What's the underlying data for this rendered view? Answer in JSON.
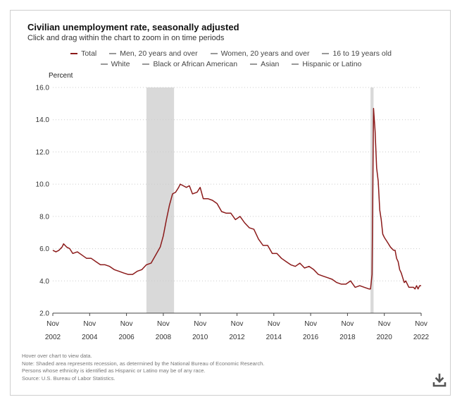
{
  "chart_data": {
    "type": "line",
    "title": "Civilian unemployment rate, seasonally adjusted",
    "subtitle": "Click and drag within the chart to zoom in on time periods",
    "ylabel": "Percent",
    "ylim": [
      2.0,
      16.0
    ],
    "yticks": [
      "2.0",
      "4.0",
      "6.0",
      "8.0",
      "10.0",
      "12.0",
      "14.0",
      "16.0"
    ],
    "xticks": [
      {
        "month": "Nov",
        "year": "2002"
      },
      {
        "month": "Nov",
        "year": "2004"
      },
      {
        "month": "Nov",
        "year": "2006"
      },
      {
        "month": "Nov",
        "year": "2008"
      },
      {
        "month": "Nov",
        "year": "2010"
      },
      {
        "month": "Nov",
        "year": "2012"
      },
      {
        "month": "Nov",
        "year": "2014"
      },
      {
        "month": "Nov",
        "year": "2016"
      },
      {
        "month": "Nov",
        "year": "2018"
      },
      {
        "month": "Nov",
        "year": "2020"
      },
      {
        "month": "Nov",
        "year": "2022"
      }
    ],
    "xlim": [
      "2002-11",
      "2022-11"
    ],
    "grid": true,
    "legend_position": "top",
    "legend": [
      {
        "label": "Total",
        "color": "#8b1a1a",
        "active": true
      },
      {
        "label": "Men, 20 years and over",
        "color": "#999999",
        "active": false
      },
      {
        "label": "Women, 20 years and over",
        "color": "#999999",
        "active": false
      },
      {
        "label": "16 to 19 years old",
        "color": "#999999",
        "active": false
      },
      {
        "label": "White",
        "color": "#999999",
        "active": false
      },
      {
        "label": "Black or African American",
        "color": "#999999",
        "active": false
      },
      {
        "label": "Asian",
        "color": "#999999",
        "active": false
      },
      {
        "label": "Hispanic or Latino",
        "color": "#999999",
        "active": false
      }
    ],
    "recessions": [
      {
        "start": "2007-12",
        "end": "2009-06"
      },
      {
        "start": "2020-02",
        "end": "2020-04"
      }
    ],
    "recession_color": "#d9d9d9",
    "series": [
      {
        "name": "Total",
        "color": "#8b1a1a",
        "points": [
          [
            "2002-11",
            5.9
          ],
          [
            "2003-01",
            5.8
          ],
          [
            "2003-03",
            5.9
          ],
          [
            "2003-05",
            6.1
          ],
          [
            "2003-06",
            6.3
          ],
          [
            "2003-08",
            6.1
          ],
          [
            "2003-10",
            6.0
          ],
          [
            "2003-12",
            5.7
          ],
          [
            "2004-03",
            5.8
          ],
          [
            "2004-06",
            5.6
          ],
          [
            "2004-09",
            5.4
          ],
          [
            "2004-12",
            5.4
          ],
          [
            "2005-03",
            5.2
          ],
          [
            "2005-06",
            5.0
          ],
          [
            "2005-09",
            5.0
          ],
          [
            "2005-12",
            4.9
          ],
          [
            "2006-03",
            4.7
          ],
          [
            "2006-06",
            4.6
          ],
          [
            "2006-09",
            4.5
          ],
          [
            "2006-12",
            4.4
          ],
          [
            "2007-03",
            4.4
          ],
          [
            "2007-06",
            4.6
          ],
          [
            "2007-09",
            4.7
          ],
          [
            "2007-12",
            5.0
          ],
          [
            "2008-03",
            5.1
          ],
          [
            "2008-06",
            5.6
          ],
          [
            "2008-09",
            6.1
          ],
          [
            "2008-11",
            6.8
          ],
          [
            "2009-01",
            7.8
          ],
          [
            "2009-03",
            8.7
          ],
          [
            "2009-05",
            9.4
          ],
          [
            "2009-07",
            9.5
          ],
          [
            "2009-09",
            9.8
          ],
          [
            "2009-10",
            10.0
          ],
          [
            "2009-12",
            9.9
          ],
          [
            "2010-02",
            9.8
          ],
          [
            "2010-04",
            9.9
          ],
          [
            "2010-06",
            9.4
          ],
          [
            "2010-09",
            9.5
          ],
          [
            "2010-11",
            9.8
          ],
          [
            "2011-01",
            9.1
          ],
          [
            "2011-04",
            9.1
          ],
          [
            "2011-07",
            9.0
          ],
          [
            "2011-10",
            8.8
          ],
          [
            "2012-01",
            8.3
          ],
          [
            "2012-04",
            8.2
          ],
          [
            "2012-07",
            8.2
          ],
          [
            "2012-10",
            7.8
          ],
          [
            "2013-01",
            8.0
          ],
          [
            "2013-04",
            7.6
          ],
          [
            "2013-07",
            7.3
          ],
          [
            "2013-10",
            7.2
          ],
          [
            "2014-01",
            6.6
          ],
          [
            "2014-04",
            6.2
          ],
          [
            "2014-07",
            6.2
          ],
          [
            "2014-10",
            5.7
          ],
          [
            "2015-01",
            5.7
          ],
          [
            "2015-04",
            5.4
          ],
          [
            "2015-07",
            5.2
          ],
          [
            "2015-10",
            5.0
          ],
          [
            "2016-01",
            4.9
          ],
          [
            "2016-04",
            5.1
          ],
          [
            "2016-07",
            4.8
          ],
          [
            "2016-10",
            4.9
          ],
          [
            "2017-01",
            4.7
          ],
          [
            "2017-04",
            4.4
          ],
          [
            "2017-07",
            4.3
          ],
          [
            "2017-10",
            4.2
          ],
          [
            "2018-01",
            4.1
          ],
          [
            "2018-04",
            3.9
          ],
          [
            "2018-07",
            3.8
          ],
          [
            "2018-10",
            3.8
          ],
          [
            "2019-01",
            4.0
          ],
          [
            "2019-04",
            3.6
          ],
          [
            "2019-07",
            3.7
          ],
          [
            "2019-10",
            3.6
          ],
          [
            "2020-01",
            3.5
          ],
          [
            "2020-02",
            3.5
          ],
          [
            "2020-03",
            4.4
          ],
          [
            "2020-04",
            14.7
          ],
          [
            "2020-05",
            13.3
          ],
          [
            "2020-06",
            11.0
          ],
          [
            "2020-07",
            10.2
          ],
          [
            "2020-08",
            8.4
          ],
          [
            "2020-09",
            7.8
          ],
          [
            "2020-10",
            6.9
          ],
          [
            "2020-11",
            6.7
          ],
          [
            "2021-01",
            6.4
          ],
          [
            "2021-03",
            6.1
          ],
          [
            "2021-05",
            5.9
          ],
          [
            "2021-06",
            5.9
          ],
          [
            "2021-07",
            5.4
          ],
          [
            "2021-08",
            5.2
          ],
          [
            "2021-09",
            4.7
          ],
          [
            "2021-10",
            4.5
          ],
          [
            "2021-11",
            4.2
          ],
          [
            "2021-12",
            3.9
          ],
          [
            "2022-01",
            4.0
          ],
          [
            "2022-02",
            3.8
          ],
          [
            "2022-03",
            3.6
          ],
          [
            "2022-04",
            3.6
          ],
          [
            "2022-05",
            3.6
          ],
          [
            "2022-06",
            3.6
          ],
          [
            "2022-07",
            3.5
          ],
          [
            "2022-08",
            3.7
          ],
          [
            "2022-09",
            3.5
          ],
          [
            "2022-10",
            3.7
          ],
          [
            "2022-11",
            3.7
          ]
        ]
      }
    ]
  },
  "notes": [
    "Hover over chart to view data.",
    "Note: Shaded area represents recession, as determined by the National Bureau of Economic Research.",
    "Persons whose ethnicity is identified as Hispanic or Latino may be of any race.",
    "Source: U.S. Bureau of Labor Statistics."
  ],
  "download_icon": "download-icon"
}
